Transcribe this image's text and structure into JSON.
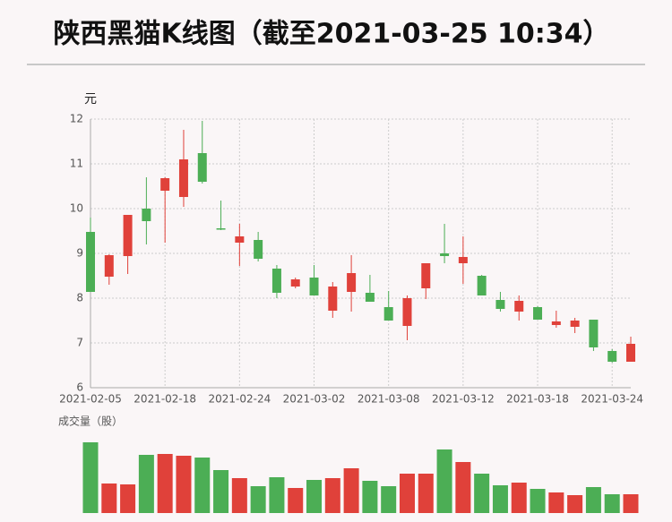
{
  "header": {
    "title": "陕西黑猫K线图（截至2021-03-25 10:34）"
  },
  "chart_data": [
    {
      "type": "candlestick",
      "y_label": "元",
      "categories": [
        "2021-02-05",
        null,
        null,
        null,
        "2021-02-18",
        null,
        null,
        null,
        "2021-02-24",
        null,
        null,
        null,
        "2021-03-02",
        null,
        null,
        null,
        "2021-03-08",
        null,
        null,
        null,
        "2021-03-12",
        null,
        null,
        null,
        "2021-03-18",
        null,
        null,
        null,
        "2021-03-24",
        null
      ],
      "open": [
        9.48,
        8.48,
        8.94,
        10.0,
        10.4,
        10.26,
        11.24,
        9.56,
        9.24,
        9.3,
        8.66,
        8.26,
        8.46,
        7.72,
        8.14,
        8.12,
        7.8,
        7.38,
        8.22,
        9.0,
        8.78,
        8.5,
        7.96,
        7.7,
        7.8,
        7.4,
        7.36,
        7.52,
        6.82,
        6.58
      ],
      "high": [
        9.8,
        8.98,
        9.86,
        10.7,
        10.7,
        11.76,
        11.96,
        10.18,
        9.66,
        9.48,
        8.74,
        8.46,
        8.74,
        8.36,
        8.96,
        8.52,
        8.16,
        8.06,
        8.78,
        9.66,
        9.38,
        8.52,
        8.14,
        8.06,
        7.82,
        7.72,
        7.56,
        7.52,
        6.86,
        7.14
      ],
      "low": [
        8.14,
        8.3,
        8.54,
        9.2,
        9.24,
        10.04,
        10.56,
        9.52,
        8.72,
        8.82,
        8.0,
        8.22,
        8.06,
        7.56,
        7.7,
        7.92,
        7.5,
        7.06,
        7.98,
        8.78,
        8.32,
        8.06,
        7.7,
        7.5,
        7.52,
        7.34,
        7.22,
        6.82,
        6.56,
        6.58
      ],
      "close": [
        8.14,
        8.96,
        9.86,
        9.72,
        10.68,
        11.1,
        10.6,
        9.54,
        9.38,
        8.88,
        8.12,
        8.42,
        8.06,
        8.26,
        8.56,
        7.92,
        7.5,
        8.0,
        8.78,
        8.94,
        8.92,
        8.06,
        7.76,
        7.94,
        7.52,
        7.48,
        7.5,
        6.9,
        6.58,
        6.98
      ],
      "up_color": "#e0413a",
      "down_color": "#4cae55",
      "ylim": [
        6,
        12
      ],
      "yticks": [
        6,
        7,
        8,
        9,
        10,
        11,
        12
      ],
      "grid": true
    },
    {
      "type": "bar",
      "title": "成交量（股）",
      "values": [
        79,
        33,
        32,
        65,
        66,
        64,
        62,
        48,
        39,
        30,
        40,
        28,
        37,
        39,
        50,
        36,
        30,
        44,
        44,
        71,
        57,
        44,
        31,
        34,
        27,
        23,
        20,
        29,
        21,
        21
      ]
    }
  ]
}
